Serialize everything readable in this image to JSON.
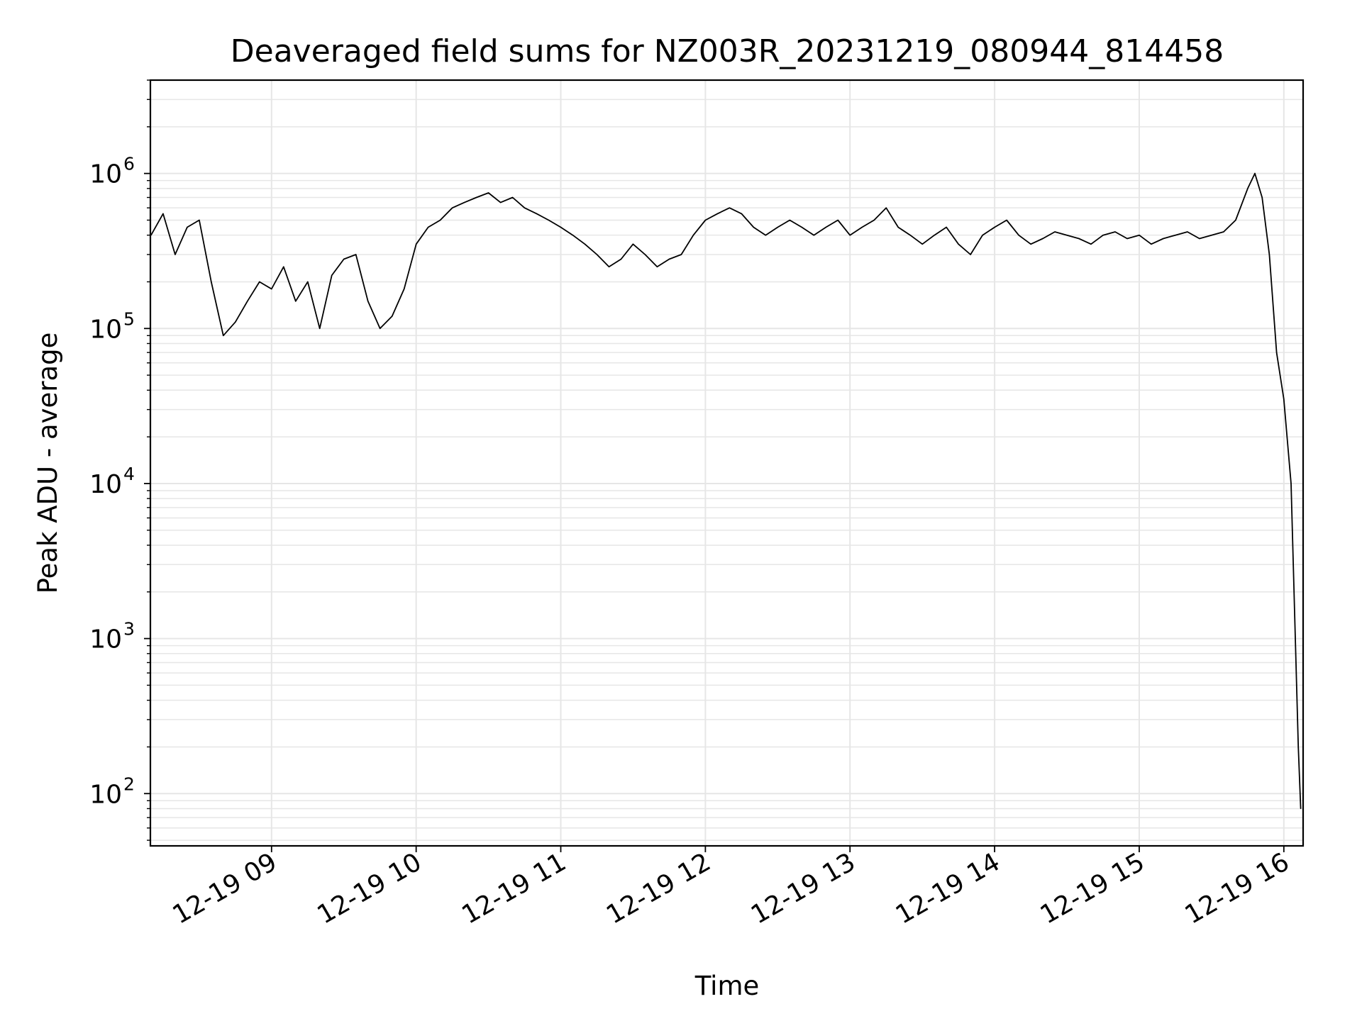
{
  "chart_data": {
    "type": "line",
    "title": "Deaveraged field sums for NZ003R_20231219_080944_814458",
    "xlabel": "Time",
    "ylabel": "Peak ADU - average",
    "x_axis_type": "time",
    "xlim": [
      "2023-12-19 08:09:44",
      "2023-12-19 16:08:00"
    ],
    "y_scale": "log",
    "ylim": [
      46,
      4000000
    ],
    "grid": true,
    "legend": "none",
    "line_color": "#000000",
    "grid_color": "#e6e6e6",
    "x_ticks": [
      {
        "value": "2023-12-19 09:00",
        "label": "12-19 09"
      },
      {
        "value": "2023-12-19 10:00",
        "label": "12-19 10"
      },
      {
        "value": "2023-12-19 11:00",
        "label": "12-19 11"
      },
      {
        "value": "2023-12-19 12:00",
        "label": "12-19 12"
      },
      {
        "value": "2023-12-19 13:00",
        "label": "12-19 13"
      },
      {
        "value": "2023-12-19 14:00",
        "label": "12-19 14"
      },
      {
        "value": "2023-12-19 15:00",
        "label": "12-19 15"
      },
      {
        "value": "2023-12-19 16:00",
        "label": "12-19 16"
      }
    ],
    "y_ticks": [
      {
        "value": 100,
        "base": "10",
        "exp": "2"
      },
      {
        "value": 1000,
        "base": "10",
        "exp": "3"
      },
      {
        "value": 10000,
        "base": "10",
        "exp": "4"
      },
      {
        "value": 100000,
        "base": "10",
        "exp": "5"
      },
      {
        "value": 1000000,
        "base": "10",
        "exp": "6"
      }
    ],
    "series": [
      {
        "x": [
          "2023-12-19 08:10",
          "2023-12-19 08:15",
          "2023-12-19 08:20",
          "2023-12-19 08:25",
          "2023-12-19 08:30",
          "2023-12-19 08:35",
          "2023-12-19 08:40",
          "2023-12-19 08:45",
          "2023-12-19 08:50",
          "2023-12-19 08:55",
          "2023-12-19 09:00",
          "2023-12-19 09:05",
          "2023-12-19 09:10",
          "2023-12-19 09:15",
          "2023-12-19 09:20",
          "2023-12-19 09:25",
          "2023-12-19 09:30",
          "2023-12-19 09:35",
          "2023-12-19 09:40",
          "2023-12-19 09:45",
          "2023-12-19 09:50",
          "2023-12-19 09:55",
          "2023-12-19 10:00",
          "2023-12-19 10:05",
          "2023-12-19 10:10",
          "2023-12-19 10:15",
          "2023-12-19 10:20",
          "2023-12-19 10:25",
          "2023-12-19 10:30",
          "2023-12-19 10:35",
          "2023-12-19 10:40",
          "2023-12-19 10:45",
          "2023-12-19 10:50",
          "2023-12-19 10:55",
          "2023-12-19 11:00",
          "2023-12-19 11:05",
          "2023-12-19 11:10",
          "2023-12-19 11:15",
          "2023-12-19 11:20",
          "2023-12-19 11:25",
          "2023-12-19 11:30",
          "2023-12-19 11:35",
          "2023-12-19 11:40",
          "2023-12-19 11:45",
          "2023-12-19 11:50",
          "2023-12-19 11:55",
          "2023-12-19 12:00",
          "2023-12-19 12:05",
          "2023-12-19 12:10",
          "2023-12-19 12:15",
          "2023-12-19 12:20",
          "2023-12-19 12:25",
          "2023-12-19 12:30",
          "2023-12-19 12:35",
          "2023-12-19 12:40",
          "2023-12-19 12:45",
          "2023-12-19 12:50",
          "2023-12-19 12:55",
          "2023-12-19 13:00",
          "2023-12-19 13:05",
          "2023-12-19 13:10",
          "2023-12-19 13:15",
          "2023-12-19 13:20",
          "2023-12-19 13:25",
          "2023-12-19 13:30",
          "2023-12-19 13:35",
          "2023-12-19 13:40",
          "2023-12-19 13:45",
          "2023-12-19 13:50",
          "2023-12-19 13:55",
          "2023-12-19 14:00",
          "2023-12-19 14:05",
          "2023-12-19 14:10",
          "2023-12-19 14:15",
          "2023-12-19 14:20",
          "2023-12-19 14:25",
          "2023-12-19 14:30",
          "2023-12-19 14:35",
          "2023-12-19 14:40",
          "2023-12-19 14:45",
          "2023-12-19 14:50",
          "2023-12-19 14:55",
          "2023-12-19 15:00",
          "2023-12-19 15:05",
          "2023-12-19 15:10",
          "2023-12-19 15:15",
          "2023-12-19 15:20",
          "2023-12-19 15:25",
          "2023-12-19 15:30",
          "2023-12-19 15:35",
          "2023-12-19 15:40",
          "2023-12-19 15:45",
          "2023-12-19 15:48",
          "2023-12-19 15:51",
          "2023-12-19 15:54",
          "2023-12-19 15:57",
          "2023-12-19 16:00",
          "2023-12-19 16:03",
          "2023-12-19 16:06",
          "2023-12-19 16:07"
        ],
        "y": [
          400000,
          550000,
          300000,
          450000,
          500000,
          200000,
          90000,
          110000,
          150000,
          200000,
          180000,
          250000,
          150000,
          200000,
          100000,
          220000,
          280000,
          300000,
          150000,
          100000,
          120000,
          180000,
          350000,
          450000,
          500000,
          600000,
          650000,
          700000,
          750000,
          650000,
          700000,
          600000,
          550000,
          500000,
          450000,
          400000,
          350000,
          300000,
          250000,
          280000,
          350000,
          300000,
          250000,
          280000,
          300000,
          400000,
          500000,
          550000,
          600000,
          550000,
          450000,
          400000,
          450000,
          500000,
          450000,
          400000,
          450000,
          500000,
          400000,
          450000,
          500000,
          600000,
          450000,
          400000,
          350000,
          400000,
          450000,
          350000,
          300000,
          400000,
          450000,
          500000,
          400000,
          350000,
          380000,
          420000,
          400000,
          380000,
          350000,
          400000,
          420000,
          380000,
          400000,
          350000,
          380000,
          400000,
          420000,
          380000,
          400000,
          420000,
          500000,
          800000,
          1000000,
          700000,
          300000,
          70000,
          35000,
          10000,
          200,
          80
        ]
      }
    ]
  }
}
